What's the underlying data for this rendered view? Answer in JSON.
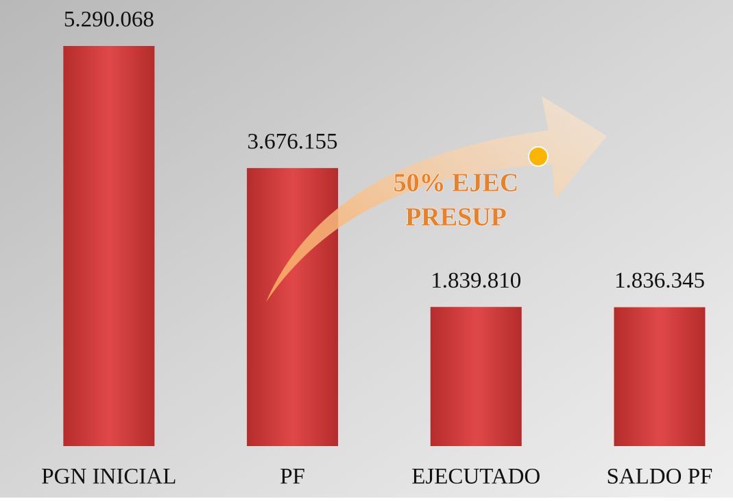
{
  "chart_data": {
    "type": "bar",
    "categories": [
      "PGN INICIAL",
      "PF",
      "EJECUTADO",
      "SALDO PF"
    ],
    "values": [
      5290068,
      3676155,
      1839810,
      1836345
    ],
    "value_labels": [
      "5.290.068",
      "3.676.155",
      "1.839.810",
      "1.836.345"
    ],
    "color": "#d94242",
    "annotation": [
      "50% EJEC",
      "PRESUP"
    ]
  }
}
